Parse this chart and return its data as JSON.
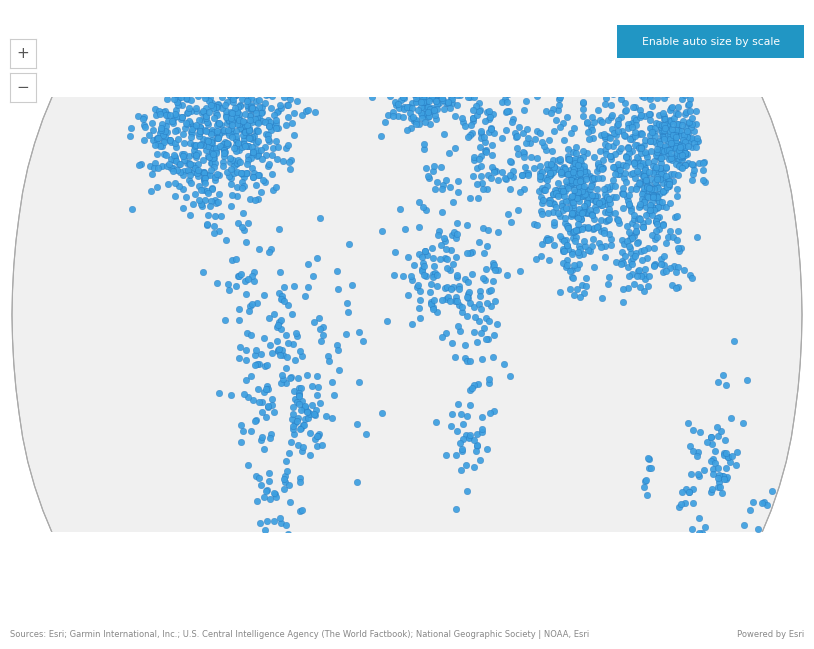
{
  "background_color": "#ffffff",
  "ocean_color": "#f0f0f0",
  "land_color": "#c8c8c8",
  "border_color": "#ffffff",
  "dot_color": "#3c9fe0",
  "dot_edge_color": "#2070b8",
  "dot_size": 22,
  "dot_alpha": 0.92,
  "button_bg": "#2196c4",
  "button_text": "Enable auto size by scale",
  "button_text_color": "#ffffff",
  "sources_text": "Sources: Esri; Garmin International, Inc.; U.S. Central Intelligence Agency (The World Factbook); National Geographic Society | NOAA, Esri",
  "powered_text": "Powered by Esri",
  "nav_border_color": "#cccccc",
  "nav_text_color": "#555555",
  "outline_color": "#aaaaaa",
  "regions": [
    {
      "lon": -95,
      "lat": 48,
      "count": 120,
      "lons": 20,
      "lats": 10
    },
    {
      "lon": -85,
      "lat": 42,
      "count": 160,
      "lons": 14,
      "lats": 8
    },
    {
      "lon": -75,
      "lat": 38,
      "count": 130,
      "lons": 10,
      "lats": 7
    },
    {
      "lon": -95,
      "lat": 35,
      "count": 100,
      "lons": 12,
      "lats": 6
    },
    {
      "lon": -118,
      "lat": 36,
      "count": 70,
      "lons": 6,
      "lats": 5
    },
    {
      "lon": -110,
      "lat": 45,
      "count": 40,
      "lons": 8,
      "lats": 5
    },
    {
      "lon": -100,
      "lat": 30,
      "count": 55,
      "lons": 10,
      "lats": 5
    },
    {
      "lon": -88,
      "lat": 22,
      "count": 35,
      "lons": 8,
      "lats": 5
    },
    {
      "lon": -75,
      "lat": 5,
      "count": 25,
      "lons": 6,
      "lats": 5
    },
    {
      "lon": -50,
      "lat": -5,
      "count": 80,
      "lons": 15,
      "lats": 12
    },
    {
      "lon": -48,
      "lat": -22,
      "count": 50,
      "lons": 5,
      "lats": 5
    },
    {
      "lon": -65,
      "lat": -35,
      "count": 50,
      "lons": 8,
      "lats": 10
    },
    {
      "lon": -70,
      "lat": -15,
      "count": 30,
      "lons": 6,
      "lats": 6
    },
    {
      "lon": -57,
      "lat": -5,
      "count": 20,
      "lons": 5,
      "lats": 4
    },
    {
      "lon": 10,
      "lat": 52,
      "count": 180,
      "lons": 12,
      "lats": 7
    },
    {
      "lon": 2,
      "lat": 47,
      "count": 80,
      "lons": 6,
      "lats": 5
    },
    {
      "lon": -2,
      "lat": 52,
      "count": 50,
      "lons": 4,
      "lats": 3
    },
    {
      "lon": 20,
      "lat": 50,
      "count": 80,
      "lons": 8,
      "lats": 5
    },
    {
      "lon": 25,
      "lat": 60,
      "count": 40,
      "lons": 8,
      "lats": 5
    },
    {
      "lon": 10,
      "lat": 58,
      "count": 35,
      "lons": 5,
      "lats": 4
    },
    {
      "lon": 30,
      "lat": 52,
      "count": 50,
      "lons": 6,
      "lats": 4
    },
    {
      "lon": 35,
      "lat": 40,
      "count": 25,
      "lons": 4,
      "lats": 3
    },
    {
      "lon": 13,
      "lat": 43,
      "count": 25,
      "lons": 4,
      "lats": 3
    },
    {
      "lon": 38,
      "lat": 60,
      "count": 40,
      "lons": 6,
      "lats": 5
    },
    {
      "lon": 60,
      "lat": 57,
      "count": 20,
      "lons": 8,
      "lats": 4
    },
    {
      "lon": 85,
      "lat": 57,
      "count": 15,
      "lons": 10,
      "lats": 4
    },
    {
      "lon": 120,
      "lat": 57,
      "count": 12,
      "lons": 12,
      "lats": 4
    },
    {
      "lon": 48,
      "lat": 35,
      "count": 50,
      "lons": 8,
      "lats": 6
    },
    {
      "lon": 36,
      "lat": 32,
      "count": 20,
      "lons": 3,
      "lats": 3
    },
    {
      "lon": 67,
      "lat": 28,
      "count": 35,
      "lons": 5,
      "lats": 4
    },
    {
      "lon": 78,
      "lat": 22,
      "count": 160,
      "lons": 12,
      "lats": 8
    },
    {
      "lon": 85,
      "lat": 25,
      "count": 80,
      "lons": 6,
      "lats": 5
    },
    {
      "lon": 77,
      "lat": 12,
      "count": 35,
      "lons": 4,
      "lats": 4
    },
    {
      "lon": 80,
      "lat": 28,
      "count": 40,
      "lons": 5,
      "lats": 4
    },
    {
      "lon": 105,
      "lat": 35,
      "count": 200,
      "lons": 15,
      "lats": 8
    },
    {
      "lon": 118,
      "lat": 30,
      "count": 100,
      "lons": 6,
      "lats": 5
    },
    {
      "lon": 113,
      "lat": 23,
      "count": 60,
      "lons": 4,
      "lats": 4
    },
    {
      "lon": 128,
      "lat": 37,
      "count": 60,
      "lons": 4,
      "lats": 3
    },
    {
      "lon": 135,
      "lat": 36,
      "count": 60,
      "lons": 4,
      "lats": 4
    },
    {
      "lon": 131,
      "lat": 33,
      "count": 20,
      "lons": 2,
      "lats": 2
    },
    {
      "lon": 141,
      "lat": 43,
      "count": 10,
      "lons": 2,
      "lats": 2
    },
    {
      "lon": 102,
      "lat": 15,
      "count": 40,
      "lons": 8,
      "lats": 6
    },
    {
      "lon": 108,
      "lat": 10,
      "count": 25,
      "lons": 5,
      "lats": 4
    },
    {
      "lon": 122,
      "lat": 12,
      "count": 20,
      "lons": 4,
      "lats": 4
    },
    {
      "lon": 65,
      "lat": 43,
      "count": 20,
      "lons": 10,
      "lats": 6
    },
    {
      "lon": 15,
      "lat": 12,
      "count": 50,
      "lons": 12,
      "lats": 7
    },
    {
      "lon": 28,
      "lat": 5,
      "count": 40,
      "lons": 8,
      "lats": 7
    },
    {
      "lon": 35,
      "lat": -5,
      "count": 25,
      "lons": 6,
      "lats": 6
    },
    {
      "lon": 8,
      "lat": 8,
      "count": 25,
      "lons": 6,
      "lats": 5
    },
    {
      "lon": 27,
      "lat": -27,
      "count": 25,
      "lons": 5,
      "lats": 5
    },
    {
      "lon": 32,
      "lat": -20,
      "count": 15,
      "lons": 4,
      "lats": 5
    },
    {
      "lon": 16,
      "lat": 28,
      "count": 20,
      "lons": 6,
      "lats": 4
    },
    {
      "lon": 38,
      "lat": 10,
      "count": 15,
      "lons": 4,
      "lats": 4
    },
    {
      "lon": 145,
      "lat": -27,
      "count": 35,
      "lons": 8,
      "lats": 7
    },
    {
      "lon": 151,
      "lat": -33,
      "count": 15,
      "lons": 2,
      "lats": 2
    },
    {
      "lon": 153,
      "lat": -27,
      "count": 8,
      "lons": 2,
      "lats": 2
    },
    {
      "lon": 138,
      "lat": -35,
      "count": 8,
      "lons": 2,
      "lats": 2
    },
    {
      "lon": 116,
      "lat": -32,
      "count": 8,
      "lons": 2,
      "lats": 2
    },
    {
      "lon": 147,
      "lat": -43,
      "count": 5,
      "lons": 2,
      "lats": 2
    },
    {
      "lon": 174,
      "lat": -38,
      "count": 8,
      "lons": 3,
      "lats": 2
    }
  ]
}
